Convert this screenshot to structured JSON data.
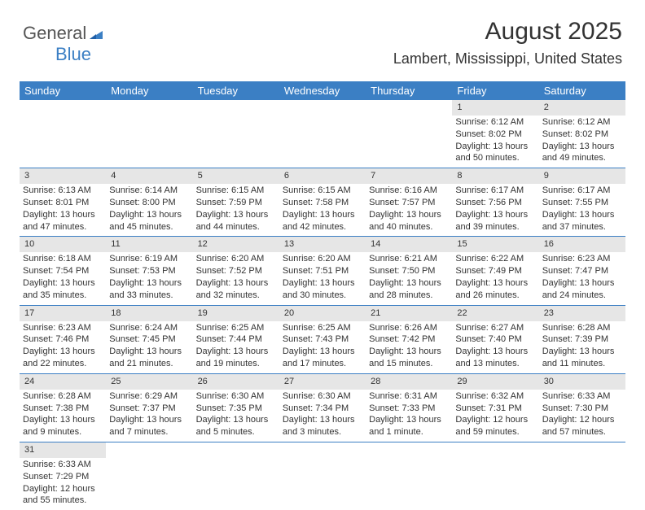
{
  "logo": {
    "text_a": "General",
    "text_b": "Blue"
  },
  "title": "August 2025",
  "subtitle": "Lambert, Mississippi, United States",
  "header_bg": "#3b7fc4",
  "header_fg": "#ffffff",
  "daynum_bg": "#e6e6e6",
  "divider_color": "#3b7fc4",
  "day_headers": [
    "Sunday",
    "Monday",
    "Tuesday",
    "Wednesday",
    "Thursday",
    "Friday",
    "Saturday"
  ],
  "weeks": [
    [
      null,
      null,
      null,
      null,
      null,
      {
        "n": "1",
        "sr": "Sunrise: 6:12 AM",
        "ss": "Sunset: 8:02 PM",
        "d1": "Daylight: 13 hours",
        "d2": "and 50 minutes."
      },
      {
        "n": "2",
        "sr": "Sunrise: 6:12 AM",
        "ss": "Sunset: 8:02 PM",
        "d1": "Daylight: 13 hours",
        "d2": "and 49 minutes."
      }
    ],
    [
      {
        "n": "3",
        "sr": "Sunrise: 6:13 AM",
        "ss": "Sunset: 8:01 PM",
        "d1": "Daylight: 13 hours",
        "d2": "and 47 minutes."
      },
      {
        "n": "4",
        "sr": "Sunrise: 6:14 AM",
        "ss": "Sunset: 8:00 PM",
        "d1": "Daylight: 13 hours",
        "d2": "and 45 minutes."
      },
      {
        "n": "5",
        "sr": "Sunrise: 6:15 AM",
        "ss": "Sunset: 7:59 PM",
        "d1": "Daylight: 13 hours",
        "d2": "and 44 minutes."
      },
      {
        "n": "6",
        "sr": "Sunrise: 6:15 AM",
        "ss": "Sunset: 7:58 PM",
        "d1": "Daylight: 13 hours",
        "d2": "and 42 minutes."
      },
      {
        "n": "7",
        "sr": "Sunrise: 6:16 AM",
        "ss": "Sunset: 7:57 PM",
        "d1": "Daylight: 13 hours",
        "d2": "and 40 minutes."
      },
      {
        "n": "8",
        "sr": "Sunrise: 6:17 AM",
        "ss": "Sunset: 7:56 PM",
        "d1": "Daylight: 13 hours",
        "d2": "and 39 minutes."
      },
      {
        "n": "9",
        "sr": "Sunrise: 6:17 AM",
        "ss": "Sunset: 7:55 PM",
        "d1": "Daylight: 13 hours",
        "d2": "and 37 minutes."
      }
    ],
    [
      {
        "n": "10",
        "sr": "Sunrise: 6:18 AM",
        "ss": "Sunset: 7:54 PM",
        "d1": "Daylight: 13 hours",
        "d2": "and 35 minutes."
      },
      {
        "n": "11",
        "sr": "Sunrise: 6:19 AM",
        "ss": "Sunset: 7:53 PM",
        "d1": "Daylight: 13 hours",
        "d2": "and 33 minutes."
      },
      {
        "n": "12",
        "sr": "Sunrise: 6:20 AM",
        "ss": "Sunset: 7:52 PM",
        "d1": "Daylight: 13 hours",
        "d2": "and 32 minutes."
      },
      {
        "n": "13",
        "sr": "Sunrise: 6:20 AM",
        "ss": "Sunset: 7:51 PM",
        "d1": "Daylight: 13 hours",
        "d2": "and 30 minutes."
      },
      {
        "n": "14",
        "sr": "Sunrise: 6:21 AM",
        "ss": "Sunset: 7:50 PM",
        "d1": "Daylight: 13 hours",
        "d2": "and 28 minutes."
      },
      {
        "n": "15",
        "sr": "Sunrise: 6:22 AM",
        "ss": "Sunset: 7:49 PM",
        "d1": "Daylight: 13 hours",
        "d2": "and 26 minutes."
      },
      {
        "n": "16",
        "sr": "Sunrise: 6:23 AM",
        "ss": "Sunset: 7:47 PM",
        "d1": "Daylight: 13 hours",
        "d2": "and 24 minutes."
      }
    ],
    [
      {
        "n": "17",
        "sr": "Sunrise: 6:23 AM",
        "ss": "Sunset: 7:46 PM",
        "d1": "Daylight: 13 hours",
        "d2": "and 22 minutes."
      },
      {
        "n": "18",
        "sr": "Sunrise: 6:24 AM",
        "ss": "Sunset: 7:45 PM",
        "d1": "Daylight: 13 hours",
        "d2": "and 21 minutes."
      },
      {
        "n": "19",
        "sr": "Sunrise: 6:25 AM",
        "ss": "Sunset: 7:44 PM",
        "d1": "Daylight: 13 hours",
        "d2": "and 19 minutes."
      },
      {
        "n": "20",
        "sr": "Sunrise: 6:25 AM",
        "ss": "Sunset: 7:43 PM",
        "d1": "Daylight: 13 hours",
        "d2": "and 17 minutes."
      },
      {
        "n": "21",
        "sr": "Sunrise: 6:26 AM",
        "ss": "Sunset: 7:42 PM",
        "d1": "Daylight: 13 hours",
        "d2": "and 15 minutes."
      },
      {
        "n": "22",
        "sr": "Sunrise: 6:27 AM",
        "ss": "Sunset: 7:40 PM",
        "d1": "Daylight: 13 hours",
        "d2": "and 13 minutes."
      },
      {
        "n": "23",
        "sr": "Sunrise: 6:28 AM",
        "ss": "Sunset: 7:39 PM",
        "d1": "Daylight: 13 hours",
        "d2": "and 11 minutes."
      }
    ],
    [
      {
        "n": "24",
        "sr": "Sunrise: 6:28 AM",
        "ss": "Sunset: 7:38 PM",
        "d1": "Daylight: 13 hours",
        "d2": "and 9 minutes."
      },
      {
        "n": "25",
        "sr": "Sunrise: 6:29 AM",
        "ss": "Sunset: 7:37 PM",
        "d1": "Daylight: 13 hours",
        "d2": "and 7 minutes."
      },
      {
        "n": "26",
        "sr": "Sunrise: 6:30 AM",
        "ss": "Sunset: 7:35 PM",
        "d1": "Daylight: 13 hours",
        "d2": "and 5 minutes."
      },
      {
        "n": "27",
        "sr": "Sunrise: 6:30 AM",
        "ss": "Sunset: 7:34 PM",
        "d1": "Daylight: 13 hours",
        "d2": "and 3 minutes."
      },
      {
        "n": "28",
        "sr": "Sunrise: 6:31 AM",
        "ss": "Sunset: 7:33 PM",
        "d1": "Daylight: 13 hours",
        "d2": "and 1 minute."
      },
      {
        "n": "29",
        "sr": "Sunrise: 6:32 AM",
        "ss": "Sunset: 7:31 PM",
        "d1": "Daylight: 12 hours",
        "d2": "and 59 minutes."
      },
      {
        "n": "30",
        "sr": "Sunrise: 6:33 AM",
        "ss": "Sunset: 7:30 PM",
        "d1": "Daylight: 12 hours",
        "d2": "and 57 minutes."
      }
    ],
    [
      {
        "n": "31",
        "sr": "Sunrise: 6:33 AM",
        "ss": "Sunset: 7:29 PM",
        "d1": "Daylight: 12 hours",
        "d2": "and 55 minutes."
      },
      null,
      null,
      null,
      null,
      null,
      null
    ]
  ]
}
